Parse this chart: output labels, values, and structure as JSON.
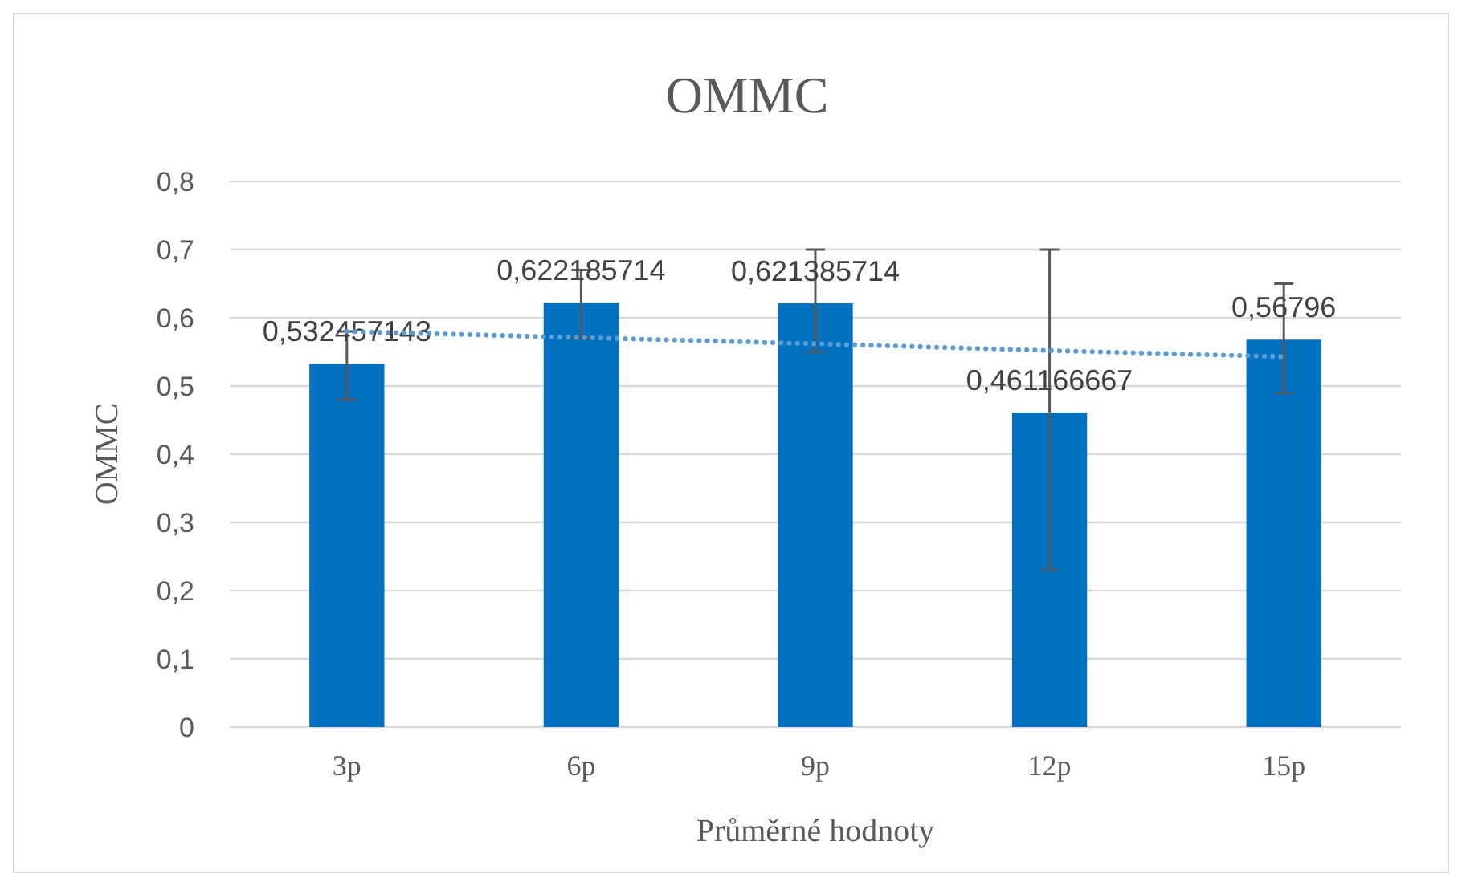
{
  "chart_data": {
    "type": "bar",
    "title": "OMMC",
    "xlabel": "Průměrné hodnoty",
    "ylabel": "OMMC",
    "categories": [
      "3p",
      "6p",
      "9p",
      "12p",
      "15p"
    ],
    "series": [
      {
        "color": "#0070c0",
        "values": [
          0.532457143,
          0.622185714,
          0.621385714,
          0.461166667,
          0.56796
        ],
        "errors": [
          [
            0.48,
            0.58
          ],
          [
            0.57,
            0.67
          ],
          [
            0.55,
            0.7
          ],
          [
            0.23,
            0.7
          ],
          [
            0.49,
            0.65
          ]
        ],
        "value_labels": [
          "0,532457143",
          "0,622185714",
          "0,621385714",
          "0,461166667",
          "0,56796"
        ]
      },
      {
        "type": "line",
        "color": "#5b9bd5",
        "line_style": "dotted",
        "values": [
          0.58,
          0.571,
          0.562,
          0.552,
          0.543
        ]
      }
    ],
    "ylim": [
      0,
      0.8
    ],
    "yticks": [
      0,
      {
        "value": 0.1,
        "label": "0,1"
      },
      {
        "value": 0.2,
        "label": "0,2"
      },
      {
        "value": 0.3,
        "label": "0,3"
      },
      {
        "value": 0.4,
        "label": "0,4"
      },
      {
        "value": 0.5,
        "label": "0,5"
      },
      {
        "value": 0.6,
        "label": "0,6"
      },
      {
        "value": 0.7,
        "label": "0,7"
      },
      {
        "value": 0.8,
        "label": "0,8"
      }
    ],
    "grid": "y"
  }
}
